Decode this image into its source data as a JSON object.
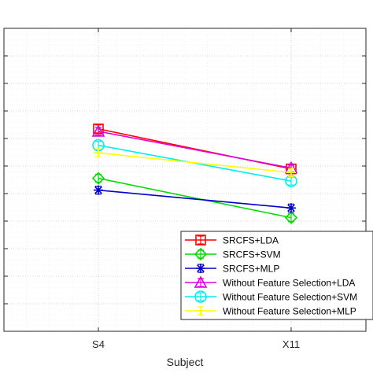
{
  "chart_data": {
    "type": "line",
    "title": "",
    "xlabel": "Subject",
    "ylabel": "",
    "categories": [
      "S4",
      "X11"
    ],
    "ylim": [
      0,
      1
    ],
    "grid": true,
    "legend_position": "bottom-right",
    "series": [
      {
        "name": "SRCFS+LDA",
        "values": [
          0.668,
          0.536
        ],
        "color": "#ff0000",
        "marker": "square"
      },
      {
        "name": "SRCFS+SVM",
        "values": [
          0.505,
          0.375
        ],
        "color": "#00dd00",
        "marker": "diamond"
      },
      {
        "name": "SRCFS+MLP",
        "values": [
          0.466,
          0.407
        ],
        "color": "#0000cc",
        "marker": "asterisk"
      },
      {
        "name": "Without Feature Selection+LDA",
        "values": [
          0.66,
          0.539
        ],
        "color": "#dd00dd",
        "marker": "triangle"
      },
      {
        "name": "Without Feature Selection+SVM",
        "values": [
          0.614,
          0.496
        ],
        "color": "#00eeee",
        "marker": "circle"
      },
      {
        "name": "Without Feature Selection+MLP",
        "values": [
          0.589,
          0.524
        ],
        "color": "#ffff00",
        "marker": "plus"
      }
    ]
  }
}
